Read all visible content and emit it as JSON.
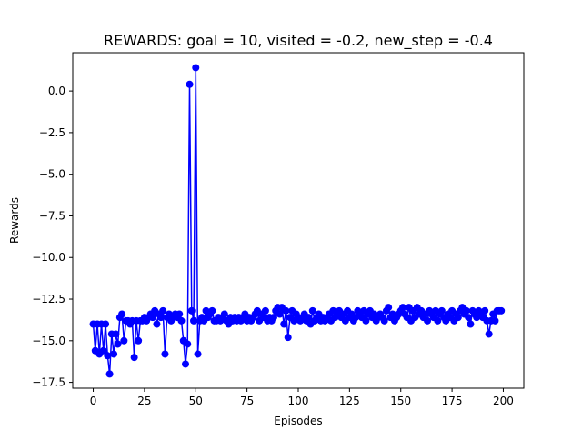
{
  "chart_data": {
    "type": "line",
    "title": "REWARDS: goal = 10, visited = -0.2, new_step = -0.4",
    "xlabel": "Episodes",
    "ylabel": "Rewards",
    "xlim": [
      -10,
      210
    ],
    "ylim": [
      -17.85,
      2.3
    ],
    "x_ticks": [
      0,
      25,
      50,
      75,
      100,
      125,
      150,
      175,
      200
    ],
    "y_ticks": [
      0.0,
      -2.5,
      -5.0,
      -7.5,
      -10.0,
      -12.5,
      -15.0,
      -17.5
    ],
    "x_tick_labels": [
      "0",
      "25",
      "50",
      "75",
      "100",
      "125",
      "150",
      "175",
      "200"
    ],
    "y_tick_labels": [
      "0.0",
      "−2.5",
      "−5.0",
      "−7.5",
      "−10.0",
      "−12.5",
      "−15.0",
      "−17.5"
    ],
    "grid": false,
    "colors": {
      "line": "#0000ff",
      "marker": "#0000ff",
      "axes": "#000000"
    },
    "series": [
      {
        "values": [
          -14.0,
          -15.6,
          -14.0,
          -15.8,
          -14.0,
          -15.6,
          -14.0,
          -15.9,
          -17.0,
          -14.6,
          -15.8,
          -14.6,
          -15.2,
          -13.6,
          -13.4,
          -15.0,
          -13.8,
          -13.8,
          -14.0,
          -13.8,
          -16.0,
          -13.8,
          -15.0,
          -13.8,
          -13.8,
          -13.6,
          -13.8,
          -13.6,
          -13.4,
          -13.6,
          -13.2,
          -14.0,
          -13.4,
          -13.6,
          -13.2,
          -15.8,
          -13.6,
          -13.4,
          -13.8,
          -13.6,
          -13.4,
          -13.6,
          -13.4,
          -13.8,
          -15.0,
          -16.4,
          -15.2,
          0.4,
          -13.2,
          -13.8,
          1.4,
          -15.8,
          -13.8,
          -13.6,
          -13.8,
          -13.2,
          -13.6,
          -13.4,
          -13.2,
          -13.8,
          -13.8,
          -13.6,
          -13.8,
          -13.6,
          -13.4,
          -13.8,
          -14.0,
          -13.6,
          -13.8,
          -13.6,
          -13.8,
          -13.6,
          -13.8,
          -13.6,
          -13.4,
          -13.8,
          -13.6,
          -13.8,
          -13.6,
          -13.4,
          -13.2,
          -13.8,
          -13.4,
          -13.6,
          -13.2,
          -13.8,
          -13.6,
          -13.8,
          -13.6,
          -13.2,
          -13.0,
          -13.4,
          -13.0,
          -14.0,
          -13.2,
          -14.8,
          -13.6,
          -13.2,
          -13.8,
          -13.4,
          -13.6,
          -13.8,
          -13.6,
          -13.4,
          -13.8,
          -13.6,
          -14.0,
          -13.2,
          -13.8,
          -13.6,
          -13.4,
          -13.8,
          -13.6,
          -13.8,
          -13.6,
          -13.4,
          -13.8,
          -13.2,
          -13.6,
          -13.4,
          -13.2,
          -13.6,
          -13.4,
          -13.8,
          -13.2,
          -13.6,
          -13.4,
          -13.8,
          -13.6,
          -13.2,
          -13.4,
          -13.6,
          -13.2,
          -13.8,
          -13.4,
          -13.2,
          -13.6,
          -13.4,
          -13.8,
          -13.6,
          -13.4,
          -13.6,
          -13.8,
          -13.2,
          -13.0,
          -13.6,
          -13.4,
          -13.8,
          -13.6,
          -13.4,
          -13.2,
          -13.0,
          -13.4,
          -13.6,
          -13.0,
          -13.8,
          -13.2,
          -13.6,
          -13.0,
          -13.4,
          -13.2,
          -13.6,
          -13.4,
          -13.8,
          -13.2,
          -13.4,
          -13.6,
          -13.2,
          -13.8,
          -13.4,
          -13.2,
          -13.6,
          -13.8,
          -13.4,
          -13.6,
          -13.2,
          -13.8,
          -13.4,
          -13.6,
          -13.2,
          -13.0,
          -13.4,
          -13.2,
          -13.6,
          -14.0,
          -13.2,
          -13.4,
          -13.6,
          -13.2,
          -13.4,
          -13.6,
          -13.2,
          -13.8,
          -14.6,
          -13.8,
          -13.4,
          -13.8,
          -13.2,
          -13.2,
          -13.2
        ]
      }
    ]
  }
}
